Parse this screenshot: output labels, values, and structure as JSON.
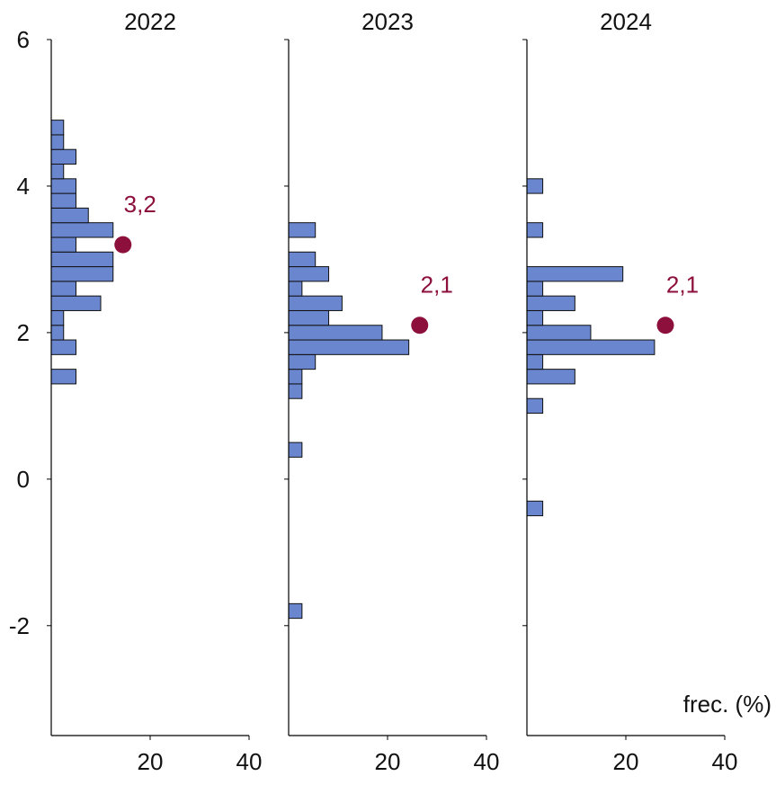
{
  "chart_data": {
    "type": "bar",
    "orientation": "horizontal-histogram",
    "shared_y_axis": true,
    "ylim": [
      -3.5,
      6
    ],
    "yticks": [
      6,
      4,
      2,
      0,
      -2
    ],
    "ytick_labels": [
      "6",
      "4",
      "2",
      "0",
      "-2"
    ],
    "xlim": [
      0,
      40
    ],
    "xticks": [
      20,
      40
    ],
    "xtick_labels": [
      "20",
      "40"
    ],
    "x_unit_note": "frec. (%)",
    "colors": {
      "bar": "#6a86cf",
      "bar_edge": "#111111",
      "point": "#8c0f3c",
      "axis": "#000000"
    },
    "bin_width": 0.2,
    "panels": [
      {
        "title": "2022",
        "bins": [
          {
            "y": 1.4,
            "value": 5
          },
          {
            "y": 1.8,
            "value": 5
          },
          {
            "y": 2.0,
            "value": 2.5
          },
          {
            "y": 2.2,
            "value": 2.5
          },
          {
            "y": 2.4,
            "value": 10
          },
          {
            "y": 2.6,
            "value": 5
          },
          {
            "y": 2.8,
            "value": 12.5
          },
          {
            "y": 3.0,
            "value": 12.5
          },
          {
            "y": 3.2,
            "value": 5
          },
          {
            "y": 3.4,
            "value": 12.5
          },
          {
            "y": 3.6,
            "value": 7.5
          },
          {
            "y": 3.8,
            "value": 5
          },
          {
            "y": 4.0,
            "value": 5
          },
          {
            "y": 4.2,
            "value": 2.5
          },
          {
            "y": 4.4,
            "value": 5
          },
          {
            "y": 4.6,
            "value": 2.5
          },
          {
            "y": 4.8,
            "value": 2.5
          }
        ],
        "point": {
          "x": 14.5,
          "y": 3.2,
          "label": "3,2"
        }
      },
      {
        "title": "2023",
        "bins": [
          {
            "y": -1.8,
            "value": 2.7
          },
          {
            "y": 0.4,
            "value": 2.7
          },
          {
            "y": 1.2,
            "value": 2.7
          },
          {
            "y": 1.4,
            "value": 2.7
          },
          {
            "y": 1.6,
            "value": 5.4
          },
          {
            "y": 1.8,
            "value": 24.3
          },
          {
            "y": 2.0,
            "value": 18.9
          },
          {
            "y": 2.2,
            "value": 8.1
          },
          {
            "y": 2.4,
            "value": 10.8
          },
          {
            "y": 2.6,
            "value": 2.7
          },
          {
            "y": 2.8,
            "value": 8.1
          },
          {
            "y": 3.0,
            "value": 5.4
          },
          {
            "y": 3.4,
            "value": 5.4
          }
        ],
        "point": {
          "x": 26.5,
          "y": 2.1,
          "label": "2,1"
        }
      },
      {
        "title": "2024",
        "bins": [
          {
            "y": -0.4,
            "value": 3.2
          },
          {
            "y": 1.0,
            "value": 3.2
          },
          {
            "y": 1.4,
            "value": 9.7
          },
          {
            "y": 1.6,
            "value": 3.2
          },
          {
            "y": 1.8,
            "value": 25.8
          },
          {
            "y": 2.0,
            "value": 12.9
          },
          {
            "y": 2.2,
            "value": 3.2
          },
          {
            "y": 2.4,
            "value": 9.7
          },
          {
            "y": 2.6,
            "value": 3.2
          },
          {
            "y": 2.8,
            "value": 19.4
          },
          {
            "y": 3.4,
            "value": 3.2
          },
          {
            "y": 4.0,
            "value": 3.2
          }
        ],
        "point": {
          "x": 28.0,
          "y": 2.1,
          "label": "2,1"
        }
      }
    ]
  }
}
